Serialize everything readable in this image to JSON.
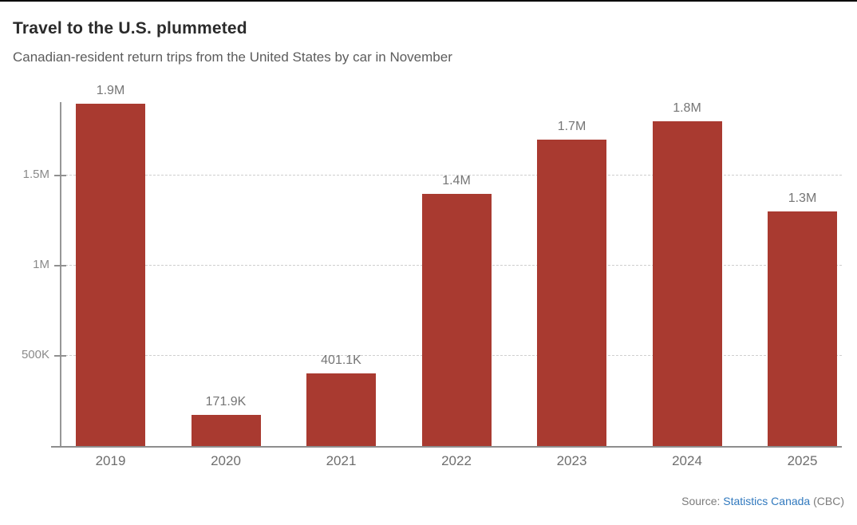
{
  "header": {
    "title": "Travel to the U.S. plummeted",
    "subtitle": "Canadian-resident return trips from the United States by car in November"
  },
  "source": {
    "prefix": "Source:",
    "link": "Statistics Canada",
    "suffix": "(CBC)"
  },
  "colors": {
    "bar": "#a93a30",
    "link": "#3179be",
    "title_text": "#2b2b2b",
    "subtitle_text": "#5c5c5c",
    "axis_line": "#8e8e8e",
    "gridline": "#cfcfcf",
    "tick_label": "#8a8a8a",
    "value_label": "#757575",
    "year_label": "#6e6e6e",
    "source_text": "#7b7b7b",
    "top_rule": "#000000"
  },
  "chart_data": {
    "type": "bar",
    "title": "Travel to the U.S. plummeted",
    "subtitle": "Canadian-resident return trips from the United States by car in November",
    "categories": [
      "2019",
      "2020",
      "2021",
      "2022",
      "2023",
      "2024",
      "2025"
    ],
    "values": [
      1900000,
      171900,
      401100,
      1400000,
      1700000,
      1800000,
      1300000
    ],
    "value_labels": [
      "1.9M",
      "171.9K",
      "401.1K",
      "1.4M",
      "1.7M",
      "1.8M",
      "1.3M"
    ],
    "xlabel": "",
    "ylabel": "",
    "ylim": [
      0,
      1916000
    ],
    "y_ticks": [
      {
        "label": "500K",
        "value": 500000
      },
      {
        "label": "1M",
        "value": 1000000
      },
      {
        "label": "1.5M",
        "value": 1500000
      }
    ],
    "grid": "horizontal-dashed",
    "legend": "none",
    "bar_color": "#a93a30",
    "source": "Source: Statistics Canada (CBC)"
  }
}
